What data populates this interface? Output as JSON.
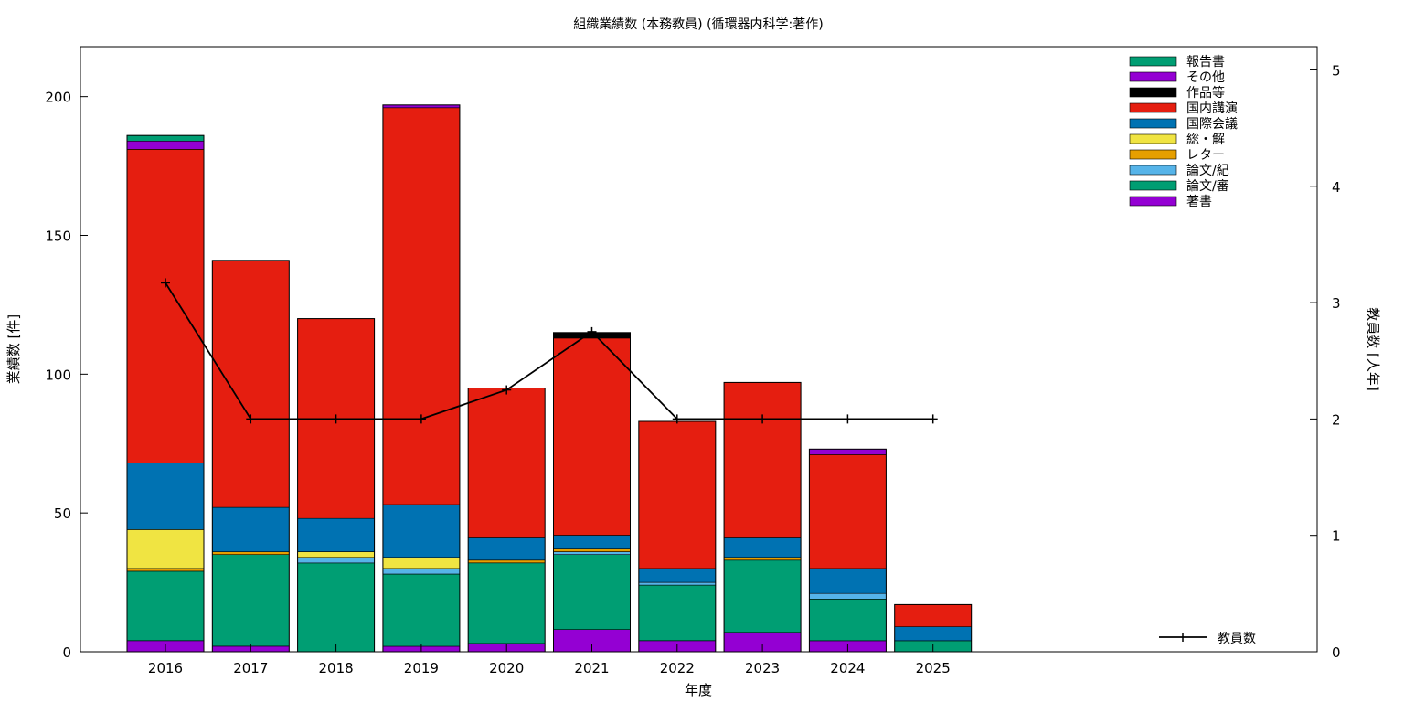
{
  "chart_data": {
    "type": "bar",
    "stacked": true,
    "title": "組織業績数 (本務教員) (循環器内科学:著作)",
    "xlabel": "年度",
    "ylabel": "業績数 [件]",
    "y2label": "教員数 [人年]",
    "categories": [
      "2016",
      "2017",
      "2018",
      "2019",
      "2020",
      "2021",
      "2022",
      "2023",
      "2024",
      "2025"
    ],
    "ylim": [
      0,
      218
    ],
    "yticks": [
      0,
      50,
      100,
      150,
      200
    ],
    "y2lim": [
      0,
      5.2
    ],
    "y2ticks": [
      0,
      1,
      2,
      3,
      4,
      5
    ],
    "grid": false,
    "legend_position": "top-right",
    "series": [
      {
        "name": "著書",
        "color": "#9400d3",
        "values": [
          4,
          2,
          0,
          2,
          3,
          8,
          4,
          7,
          4,
          0
        ]
      },
      {
        "name": "論文/審",
        "color": "#009e73",
        "values": [
          25,
          33,
          32,
          26,
          29,
          27,
          20,
          26,
          15,
          4
        ]
      },
      {
        "name": "論文/紀",
        "color": "#56b4e9",
        "values": [
          0,
          0,
          2,
          2,
          0,
          1,
          1,
          0,
          2,
          0
        ]
      },
      {
        "name": "レター",
        "color": "#e69f00",
        "values": [
          1,
          1,
          0,
          0,
          1,
          1,
          0,
          1,
          0,
          0
        ]
      },
      {
        "name": "総・解",
        "color": "#f0e442",
        "values": [
          14,
          0,
          2,
          4,
          0,
          0,
          0,
          0,
          0,
          0
        ]
      },
      {
        "name": "国際会議",
        "color": "#0072b2",
        "values": [
          24,
          16,
          12,
          19,
          8,
          5,
          5,
          7,
          9,
          5
        ]
      },
      {
        "name": "国内講演",
        "color": "#e51e10",
        "values": [
          113,
          89,
          72,
          143,
          54,
          71,
          53,
          56,
          41,
          8
        ]
      },
      {
        "name": "作品等",
        "color": "#000000",
        "values": [
          0,
          0,
          0,
          0,
          0,
          2,
          0,
          0,
          0,
          0
        ]
      },
      {
        "name": "その他",
        "color": "#9400d3",
        "values": [
          3,
          0,
          0,
          1,
          0,
          0,
          0,
          0,
          2,
          0
        ]
      },
      {
        "name": "報告書",
        "color": "#009e73",
        "values": [
          2,
          0,
          0,
          0,
          0,
          0,
          0,
          0,
          0,
          0
        ]
      }
    ],
    "line_series": {
      "name": "教員数",
      "color": "#000000",
      "axis": "y2",
      "values": [
        3.17,
        2.0,
        2.0,
        2.0,
        2.25,
        2.75,
        2.0,
        2.0,
        2.0,
        2.0
      ]
    }
  }
}
